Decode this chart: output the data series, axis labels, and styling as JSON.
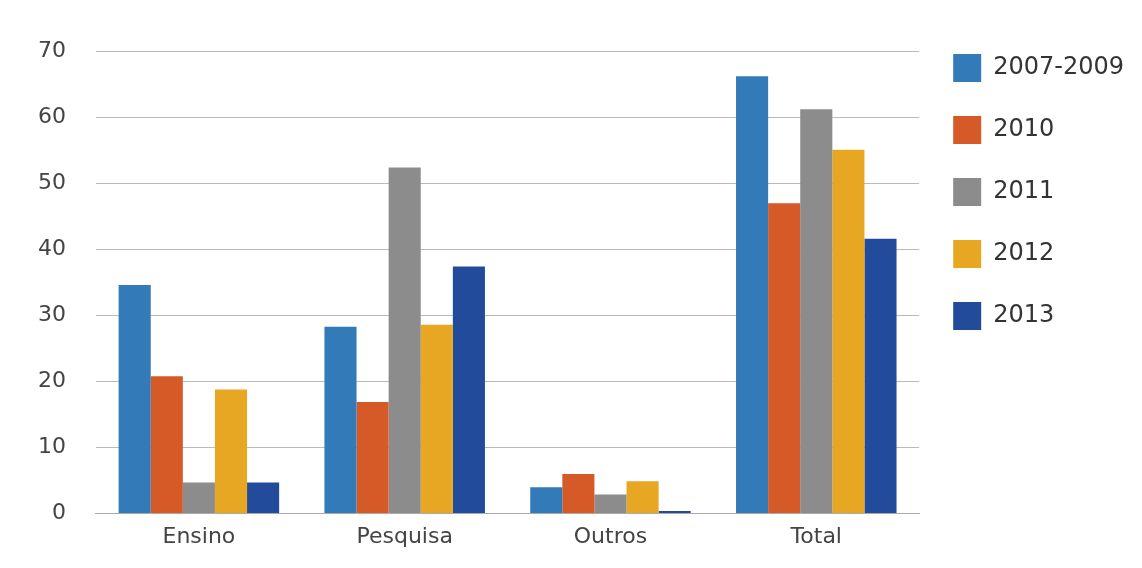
{
  "chart_data": {
    "type": "bar",
    "categories": [
      "Ensino",
      "Pesquisa",
      "Outros",
      "Total"
    ],
    "series": [
      {
        "name": "2007-2009",
        "color": "#337ab9",
        "values": [
          34.6,
          28.3,
          4.0,
          66.2
        ]
      },
      {
        "name": "2010",
        "color": "#d65a27",
        "values": [
          20.8,
          16.9,
          6.0,
          47.0
        ]
      },
      {
        "name": "2011",
        "color": "#8c8c8c",
        "values": [
          4.7,
          52.4,
          2.9,
          61.2
        ]
      },
      {
        "name": "2012",
        "color": "#e8a723",
        "values": [
          18.8,
          28.6,
          4.9,
          55.1
        ]
      },
      {
        "name": "2013",
        "color": "#234b9c",
        "values": [
          4.7,
          37.4,
          0.4,
          41.6
        ]
      }
    ],
    "ylim": [
      0,
      70
    ],
    "yticks": [
      0,
      10,
      20,
      30,
      40,
      50,
      60,
      70
    ],
    "grid": "y",
    "legend": "right"
  }
}
